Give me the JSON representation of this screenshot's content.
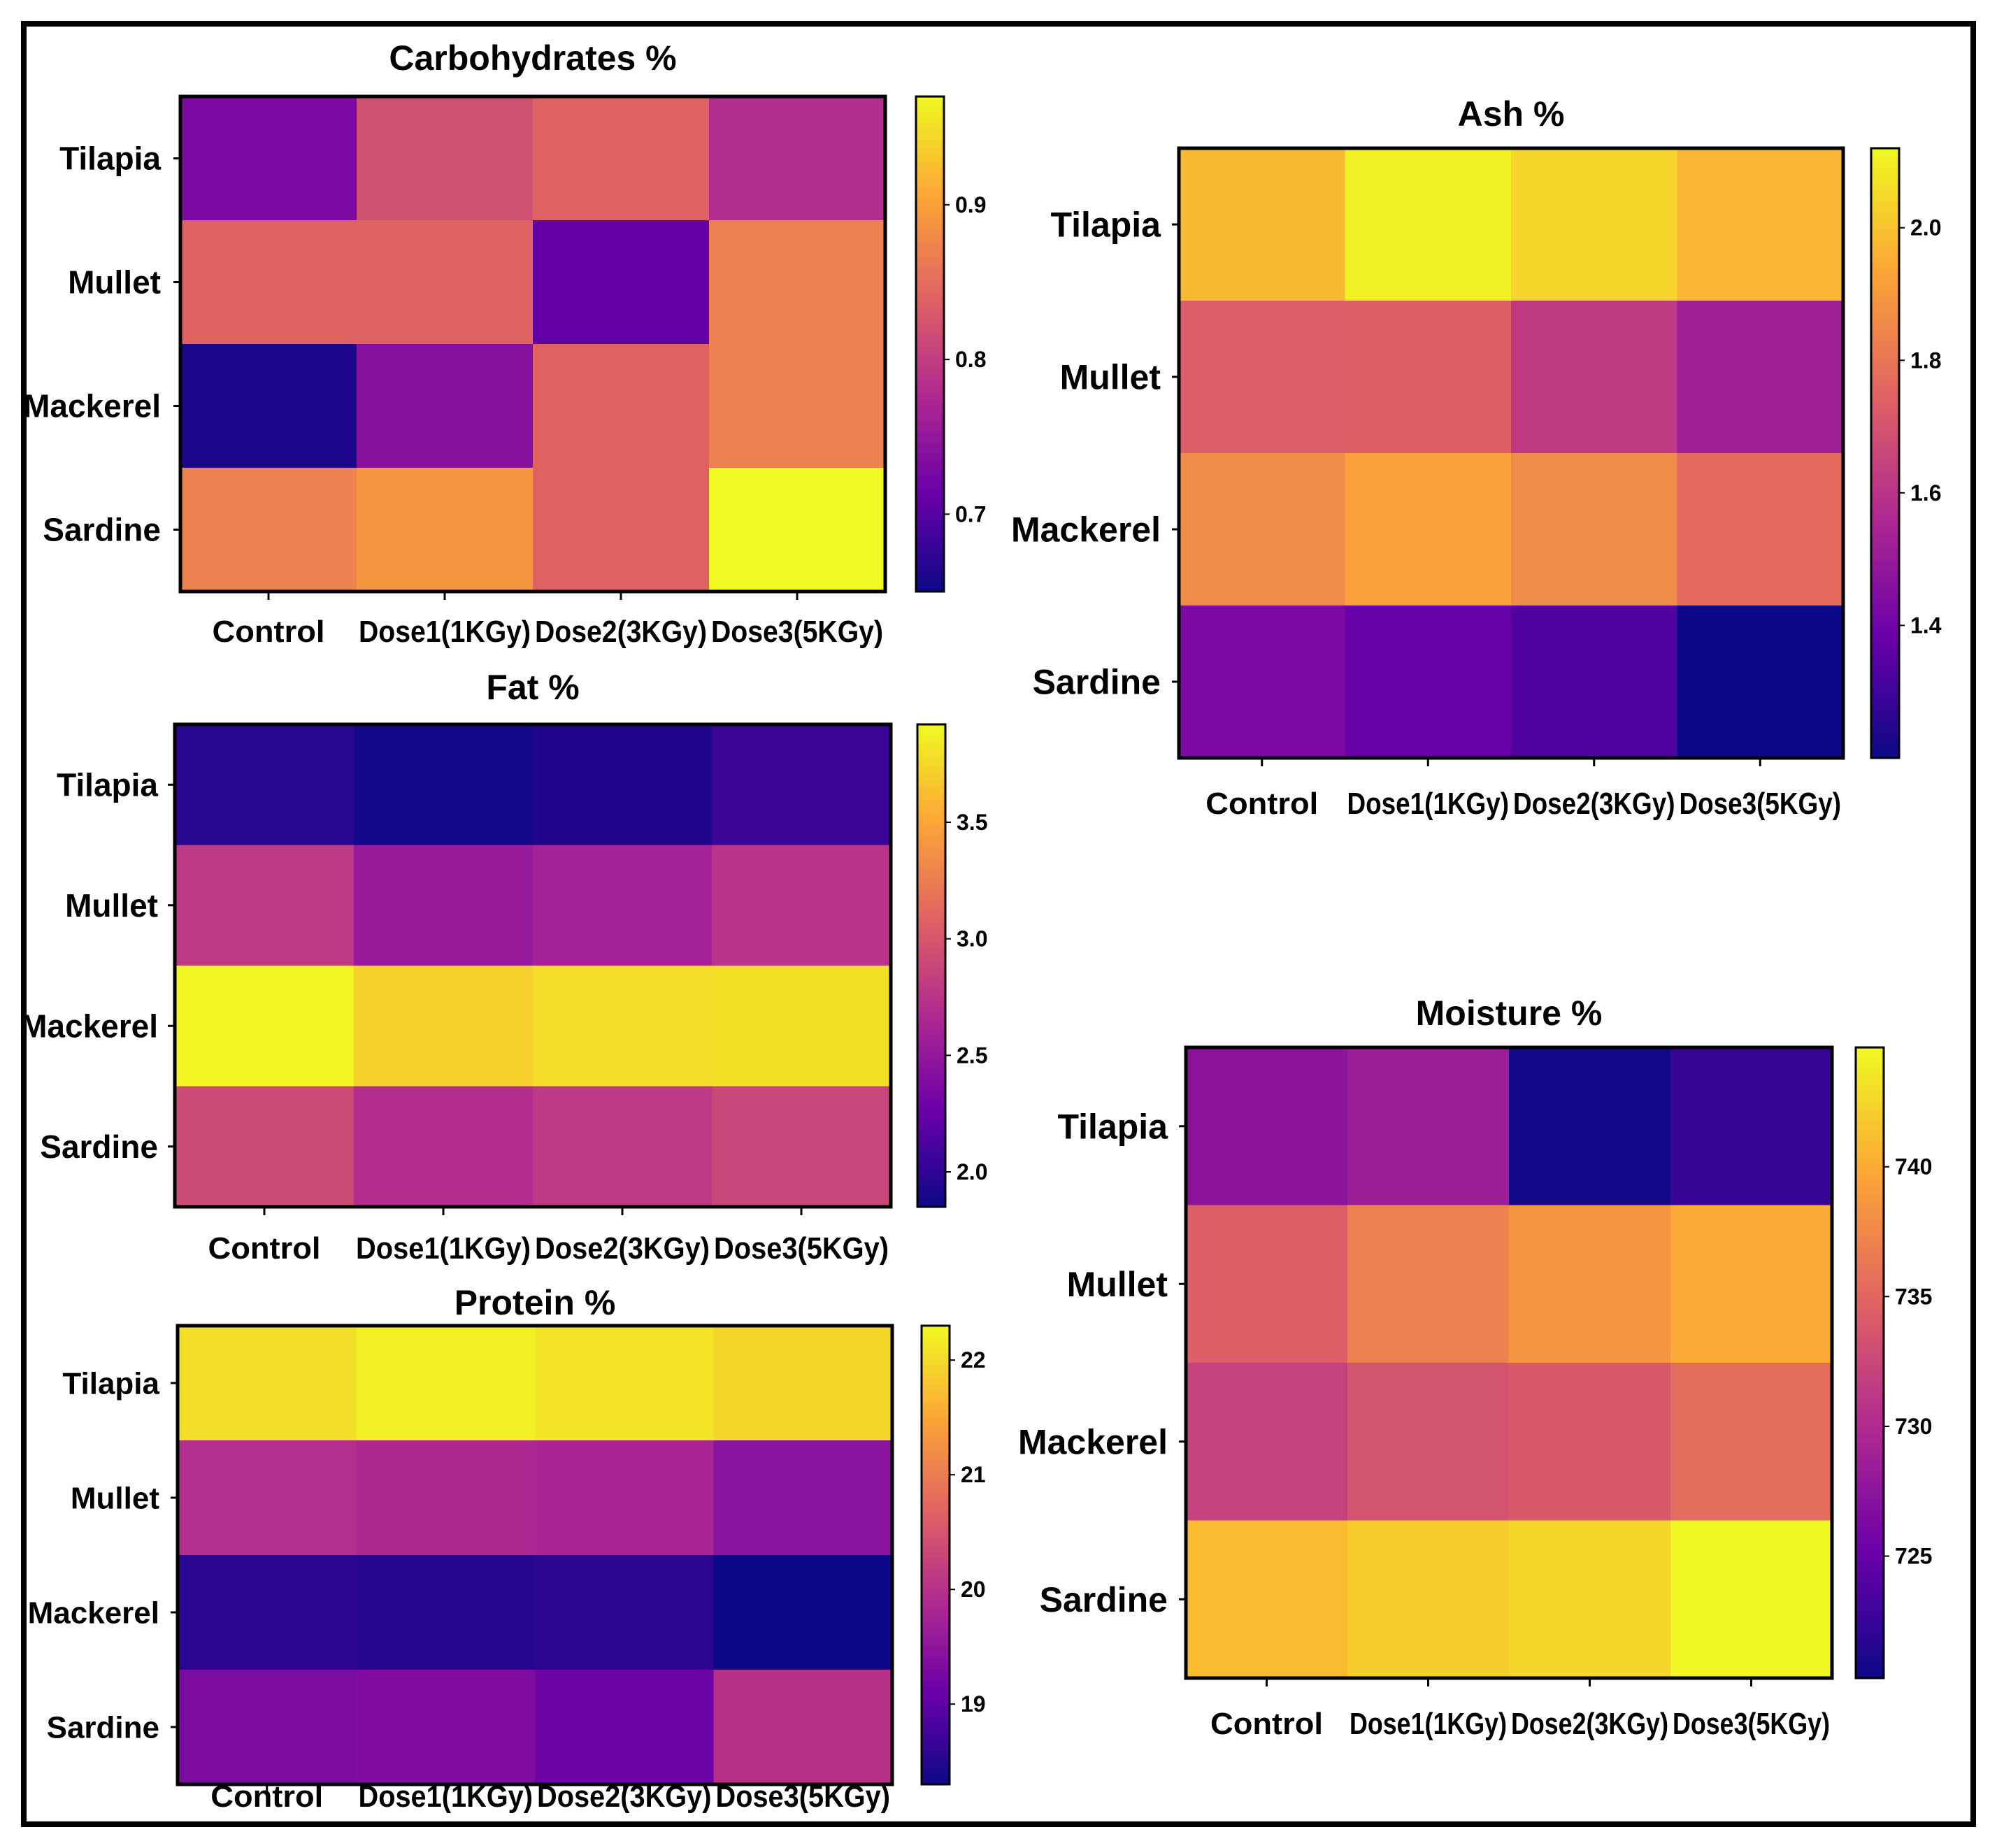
{
  "figure": {
    "colormap": "plasma",
    "colormap_stops": [
      "#0d0887",
      "#6a00a8",
      "#b12a90",
      "#e16462",
      "#fca636",
      "#f0f921"
    ],
    "frame_color": "#000000"
  },
  "chart_data": [
    {
      "id": "carbohydrates",
      "type": "heatmap",
      "title": "Carbohydrates %",
      "rows": [
        "Tilapia",
        "Mullet",
        "Mackerel",
        "Sardine"
      ],
      "columns": [
        "Control",
        "Dose1(1KGy)",
        "Dose2(3KGy)",
        "Dose3(5KGy)"
      ],
      "values": [
        [
          0.73,
          0.82,
          0.84,
          0.78
        ],
        [
          0.84,
          0.84,
          0.71,
          0.87
        ],
        [
          0.66,
          0.74,
          0.84,
          0.87
        ],
        [
          0.87,
          0.89,
          0.84,
          0.97
        ]
      ],
      "range": [
        0.65,
        0.97
      ],
      "colorbar_ticks": [
        0.7,
        0.8,
        0.9
      ]
    },
    {
      "id": "ash",
      "type": "heatmap",
      "title": "Ash %",
      "rows": [
        "Tilapia",
        "Mullet",
        "Mackerel",
        "Sardine"
      ],
      "columns": [
        "Control",
        "Dose1(1KGy)",
        "Dose2(3KGy)",
        "Dose3(5KGy)"
      ],
      "values": [
        [
          1.98,
          2.1,
          2.04,
          1.97
        ],
        [
          1.73,
          1.74,
          1.62,
          1.52
        ],
        [
          1.86,
          1.92,
          1.86,
          1.77
        ],
        [
          1.43,
          1.38,
          1.33,
          1.2
        ]
      ],
      "range": [
        1.2,
        2.12
      ],
      "colorbar_ticks": [
        1.4,
        1.6,
        1.8,
        2.0
      ]
    },
    {
      "id": "fat",
      "type": "heatmap",
      "title": "Fat %",
      "rows": [
        "Tilapia",
        "Mullet",
        "Mackerel",
        "Sardine"
      ],
      "columns": [
        "Control",
        "Dose1(1KGy)",
        "Dose2(3KGy)",
        "Dose3(5KGy)"
      ],
      "values": [
        [
          1.97,
          1.88,
          1.93,
          2.05
        ],
        [
          2.78,
          2.52,
          2.6,
          2.75
        ],
        [
          3.9,
          3.72,
          3.78,
          3.8
        ],
        [
          2.92,
          2.7,
          2.78,
          2.88
        ]
      ],
      "range": [
        1.85,
        3.92
      ],
      "colorbar_ticks": [
        2.0,
        2.5,
        3.0,
        3.5
      ]
    },
    {
      "id": "protein",
      "type": "heatmap",
      "title": "Protein %",
      "rows": [
        "Tilapia",
        "Mullet",
        "Mackerel",
        "Sardine"
      ],
      "columns": [
        "Control",
        "Dose1(1KGy)",
        "Dose2(3KGy)",
        "Dose3(5KGy)"
      ],
      "values": [
        [
          22.05,
          22.2,
          22.1,
          21.95
        ],
        [
          19.95,
          19.85,
          19.8,
          19.45
        ],
        [
          18.55,
          18.5,
          18.55,
          18.3
        ],
        [
          19.3,
          19.35,
          19.15,
          20.0
        ]
      ],
      "range": [
        18.3,
        22.3
      ],
      "colorbar_ticks": [
        19,
        20,
        21,
        22
      ]
    },
    {
      "id": "moisture",
      "type": "heatmap",
      "title": "Moisture %",
      "rows": [
        "Tilapia",
        "Mullet",
        "Mackerel",
        "Sardine"
      ],
      "columns": [
        "Control",
        "Dose1(1KGy)",
        "Dose2(3KGy)",
        "Dose3(5KGy)"
      ],
      "values": [
        [
          727.5,
          728.5,
          720.5,
          722.5
        ],
        [
          734.5,
          737.0,
          738.5,
          740.0
        ],
        [
          732.0,
          733.5,
          734.0,
          735.5
        ],
        [
          741.0,
          742.0,
          742.5,
          744.5
        ]
      ],
      "range": [
        720.3,
        744.6
      ],
      "colorbar_ticks": [
        725,
        730,
        735,
        740
      ]
    }
  ]
}
